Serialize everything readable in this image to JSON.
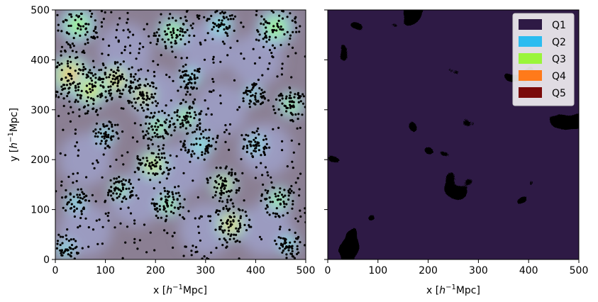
{
  "chart_data": [
    {
      "type": "scatter",
      "description_type": "galaxy positions over density field",
      "xlabel_parts": [
        "x [",
        "h",
        "−1",
        "Mpc]"
      ],
      "ylabel_parts": [
        "y [",
        "h",
        "−1",
        "Mpc]"
      ],
      "xlim": [
        0,
        500
      ],
      "ylim": [
        0,
        500
      ],
      "xticks": [
        0,
        100,
        200,
        300,
        400,
        500
      ],
      "yticks": [
        0,
        100,
        200,
        300,
        400,
        500
      ],
      "background_colormap": [
        "#8b7f93",
        "#9da0c8",
        "#a6c0ee",
        "#7fe6d8",
        "#a9f06b",
        "#e8d96a",
        "#f3b48a"
      ],
      "point_color": "#000000",
      "density_blobs": [
        {
          "x": 30,
          "y": 370,
          "r": 40,
          "level": 6
        },
        {
          "x": 70,
          "y": 340,
          "r": 35,
          "level": 5
        },
        {
          "x": 120,
          "y": 360,
          "r": 30,
          "level": 6
        },
        {
          "x": 175,
          "y": 330,
          "r": 25,
          "level": 6
        },
        {
          "x": 45,
          "y": 470,
          "r": 35,
          "level": 4
        },
        {
          "x": 235,
          "y": 455,
          "r": 30,
          "level": 4
        },
        {
          "x": 330,
          "y": 470,
          "r": 25,
          "level": 3
        },
        {
          "x": 440,
          "y": 465,
          "r": 35,
          "level": 4
        },
        {
          "x": 205,
          "y": 265,
          "r": 25,
          "level": 4
        },
        {
          "x": 195,
          "y": 190,
          "r": 30,
          "level": 5
        },
        {
          "x": 260,
          "y": 285,
          "r": 25,
          "level": 4
        },
        {
          "x": 270,
          "y": 365,
          "r": 20,
          "level": 3
        },
        {
          "x": 350,
          "y": 70,
          "r": 30,
          "level": 6
        },
        {
          "x": 335,
          "y": 150,
          "r": 25,
          "level": 5
        },
        {
          "x": 225,
          "y": 110,
          "r": 25,
          "level": 4
        },
        {
          "x": 130,
          "y": 140,
          "r": 20,
          "level": 4
        },
        {
          "x": 40,
          "y": 115,
          "r": 20,
          "level": 3
        },
        {
          "x": 470,
          "y": 310,
          "r": 25,
          "level": 4
        },
        {
          "x": 445,
          "y": 120,
          "r": 25,
          "level": 4
        },
        {
          "x": 100,
          "y": 250,
          "r": 20,
          "level": 3
        },
        {
          "x": 400,
          "y": 230,
          "r": 20,
          "level": 3
        },
        {
          "x": 290,
          "y": 230,
          "r": 25,
          "level": 3
        },
        {
          "x": 465,
          "y": 30,
          "r": 20,
          "level": 3
        },
        {
          "x": 395,
          "y": 330,
          "r": 18,
          "level": 3
        },
        {
          "x": 20,
          "y": 20,
          "r": 20,
          "level": 3
        }
      ],
      "points_summary": "galaxy positions"
    },
    {
      "type": "heatmap",
      "description_type": "density quintile map",
      "xlabel_parts": [
        "x [",
        "h",
        "−1",
        "Mpc]"
      ],
      "xlim": [
        0,
        500
      ],
      "ylim": [
        0,
        500
      ],
      "xticks": [
        0,
        100,
        200,
        300,
        400,
        500
      ],
      "legend": {
        "placement": "top-right",
        "entries": [
          {
            "label": "Q1",
            "color": "#2e1a45"
          },
          {
            "label": "Q2",
            "color": "#2bbcf0"
          },
          {
            "label": "Q3",
            "color": "#9af53a"
          },
          {
            "label": "Q4",
            "color": "#ff7a1a"
          },
          {
            "label": "Q5",
            "color": "#7a0a0a"
          }
        ]
      }
    }
  ]
}
